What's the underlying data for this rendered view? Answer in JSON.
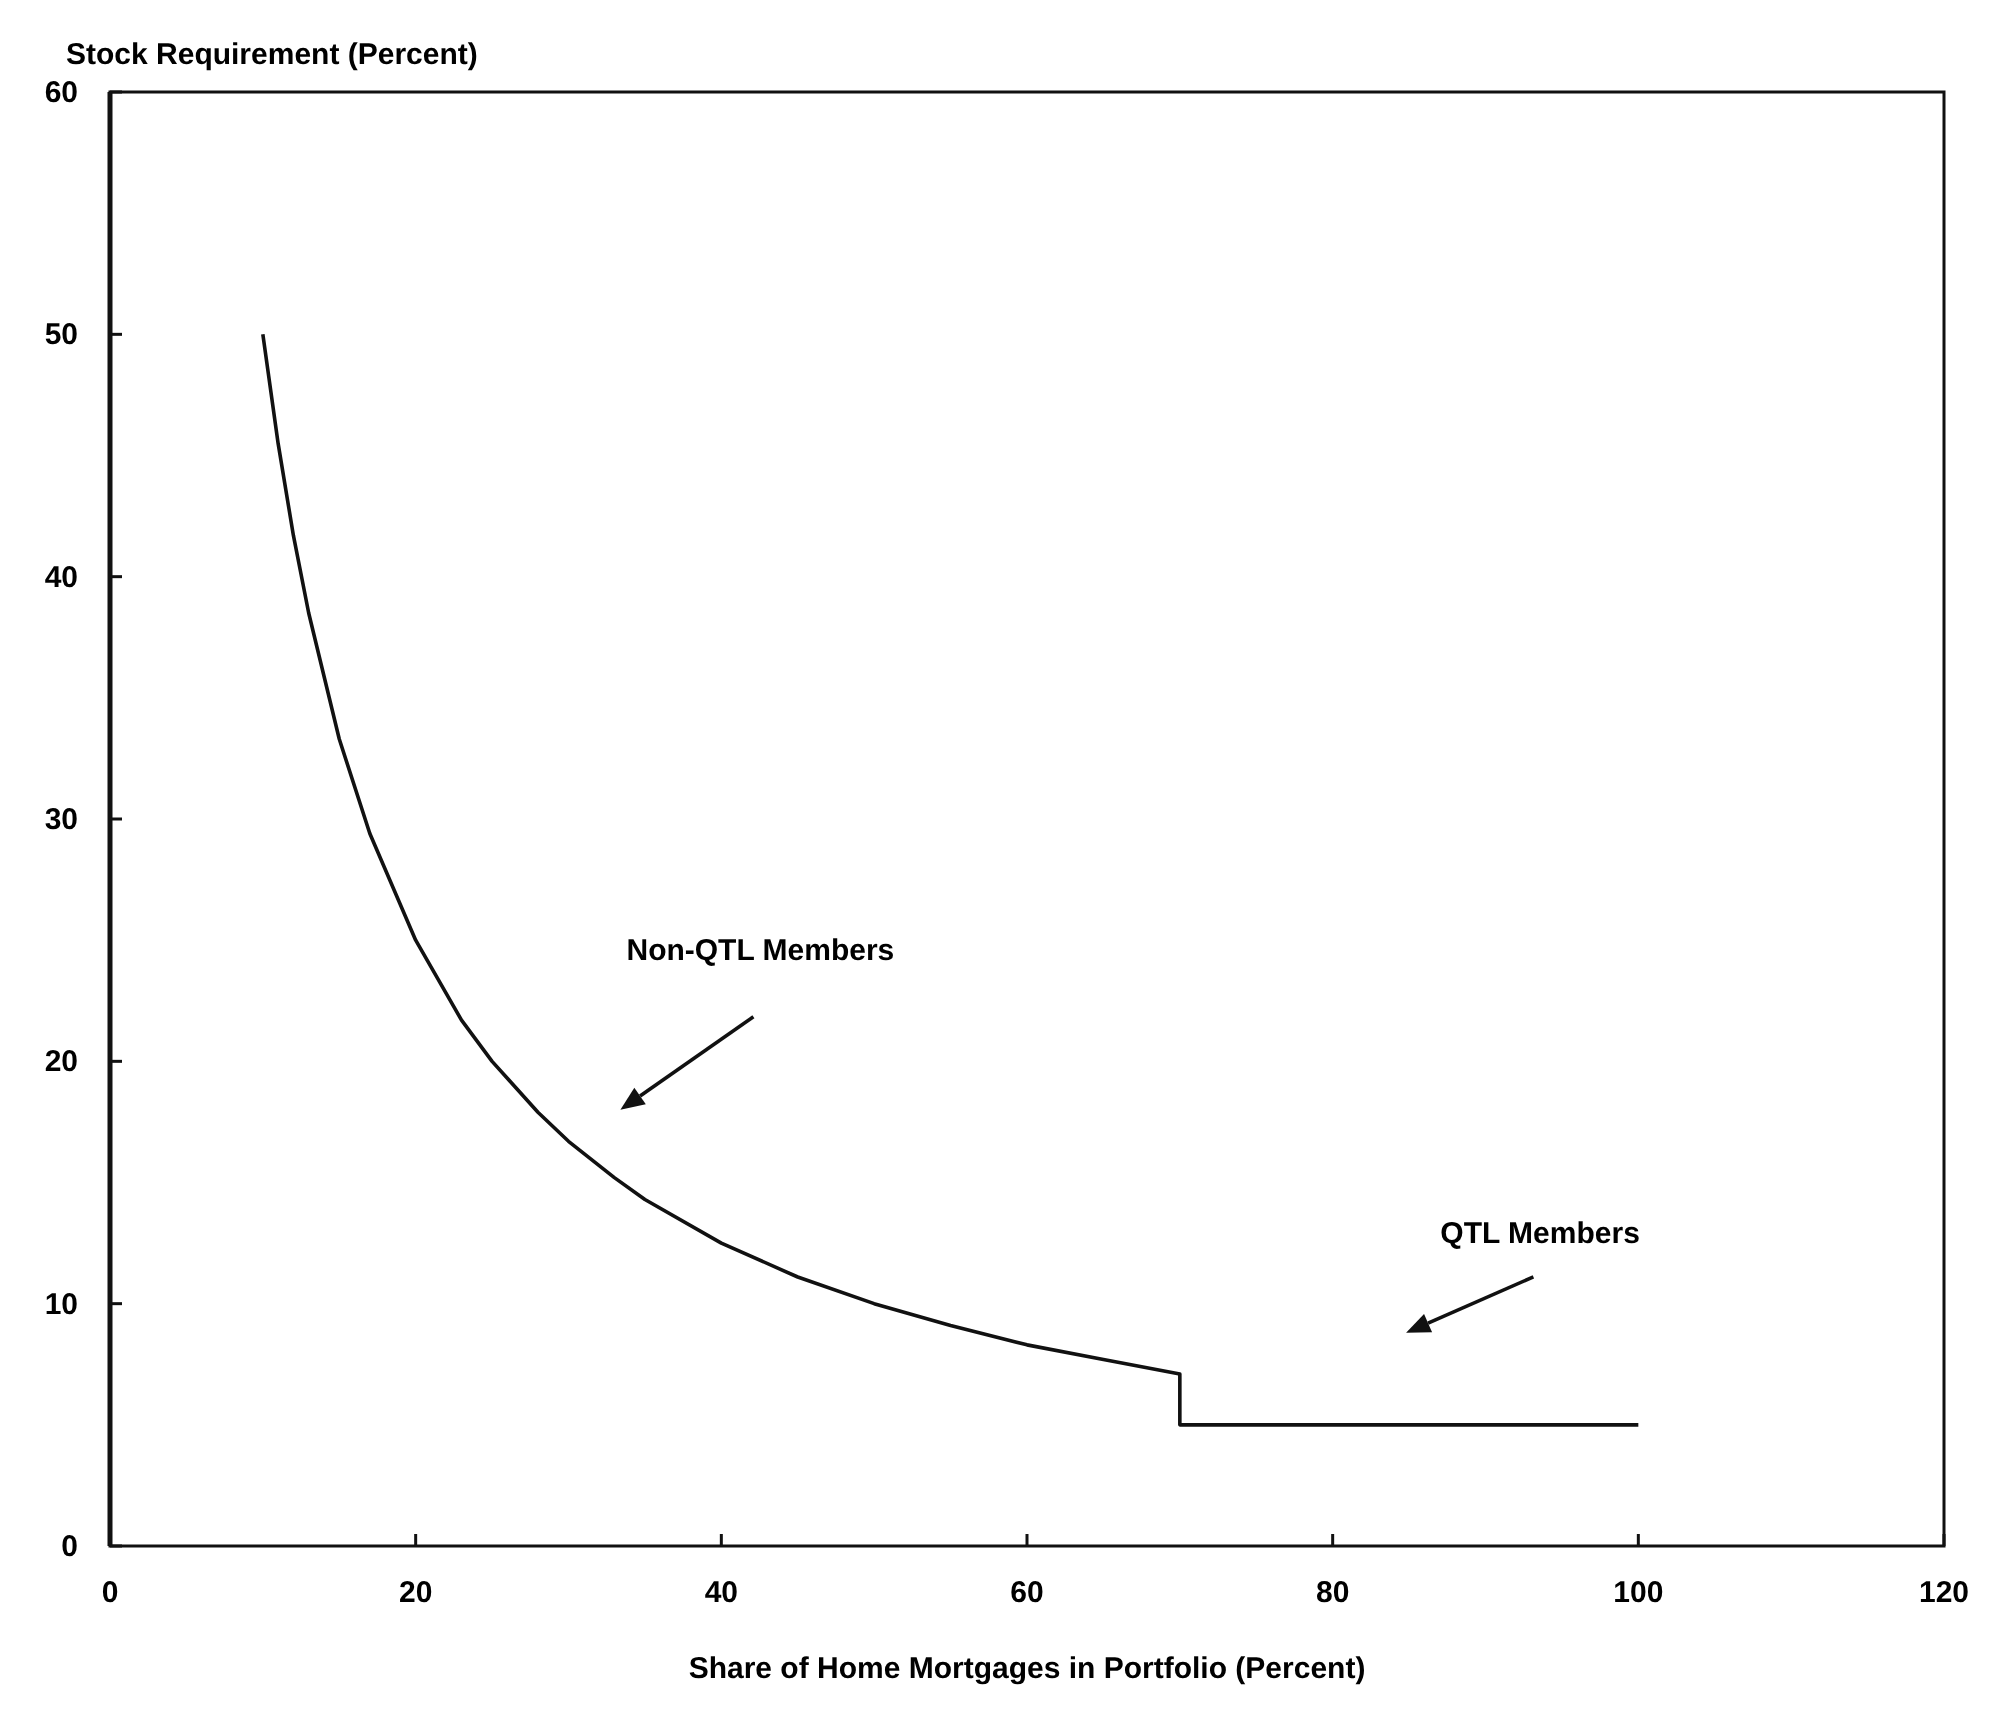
{
  "chart_data": {
    "type": "line",
    "xlabel": "Share of Home Mortgages in Portfolio (Percent)",
    "ylabel": "Stock Requirement (Percent)",
    "x": [
      10,
      11,
      12,
      13,
      15,
      17,
      20,
      23,
      25,
      28,
      30,
      33,
      35,
      40,
      45,
      50,
      55,
      60,
      65,
      70,
      70,
      80,
      90,
      100
    ],
    "series": [
      {
        "color": "#111111",
        "values": [
          50,
          45.5,
          41.7,
          38.5,
          33.3,
          29.4,
          25,
          21.7,
          20,
          17.9,
          16.7,
          15.2,
          14.3,
          12.5,
          11.1,
          10,
          9.1,
          8.3,
          7.7,
          7.1,
          5,
          5,
          5,
          5
        ]
      }
    ],
    "xlim": [
      0,
      120
    ],
    "xticks": [
      0,
      20,
      40,
      60,
      80,
      100,
      120
    ],
    "ylim": [
      0,
      60
    ],
    "yticks": [
      0,
      10,
      20,
      30,
      40,
      50,
      60
    ],
    "grid": false,
    "marker": "none",
    "line_style": "solid",
    "annotations": [
      "Non-QTL Members",
      "QTL Members"
    ]
  }
}
